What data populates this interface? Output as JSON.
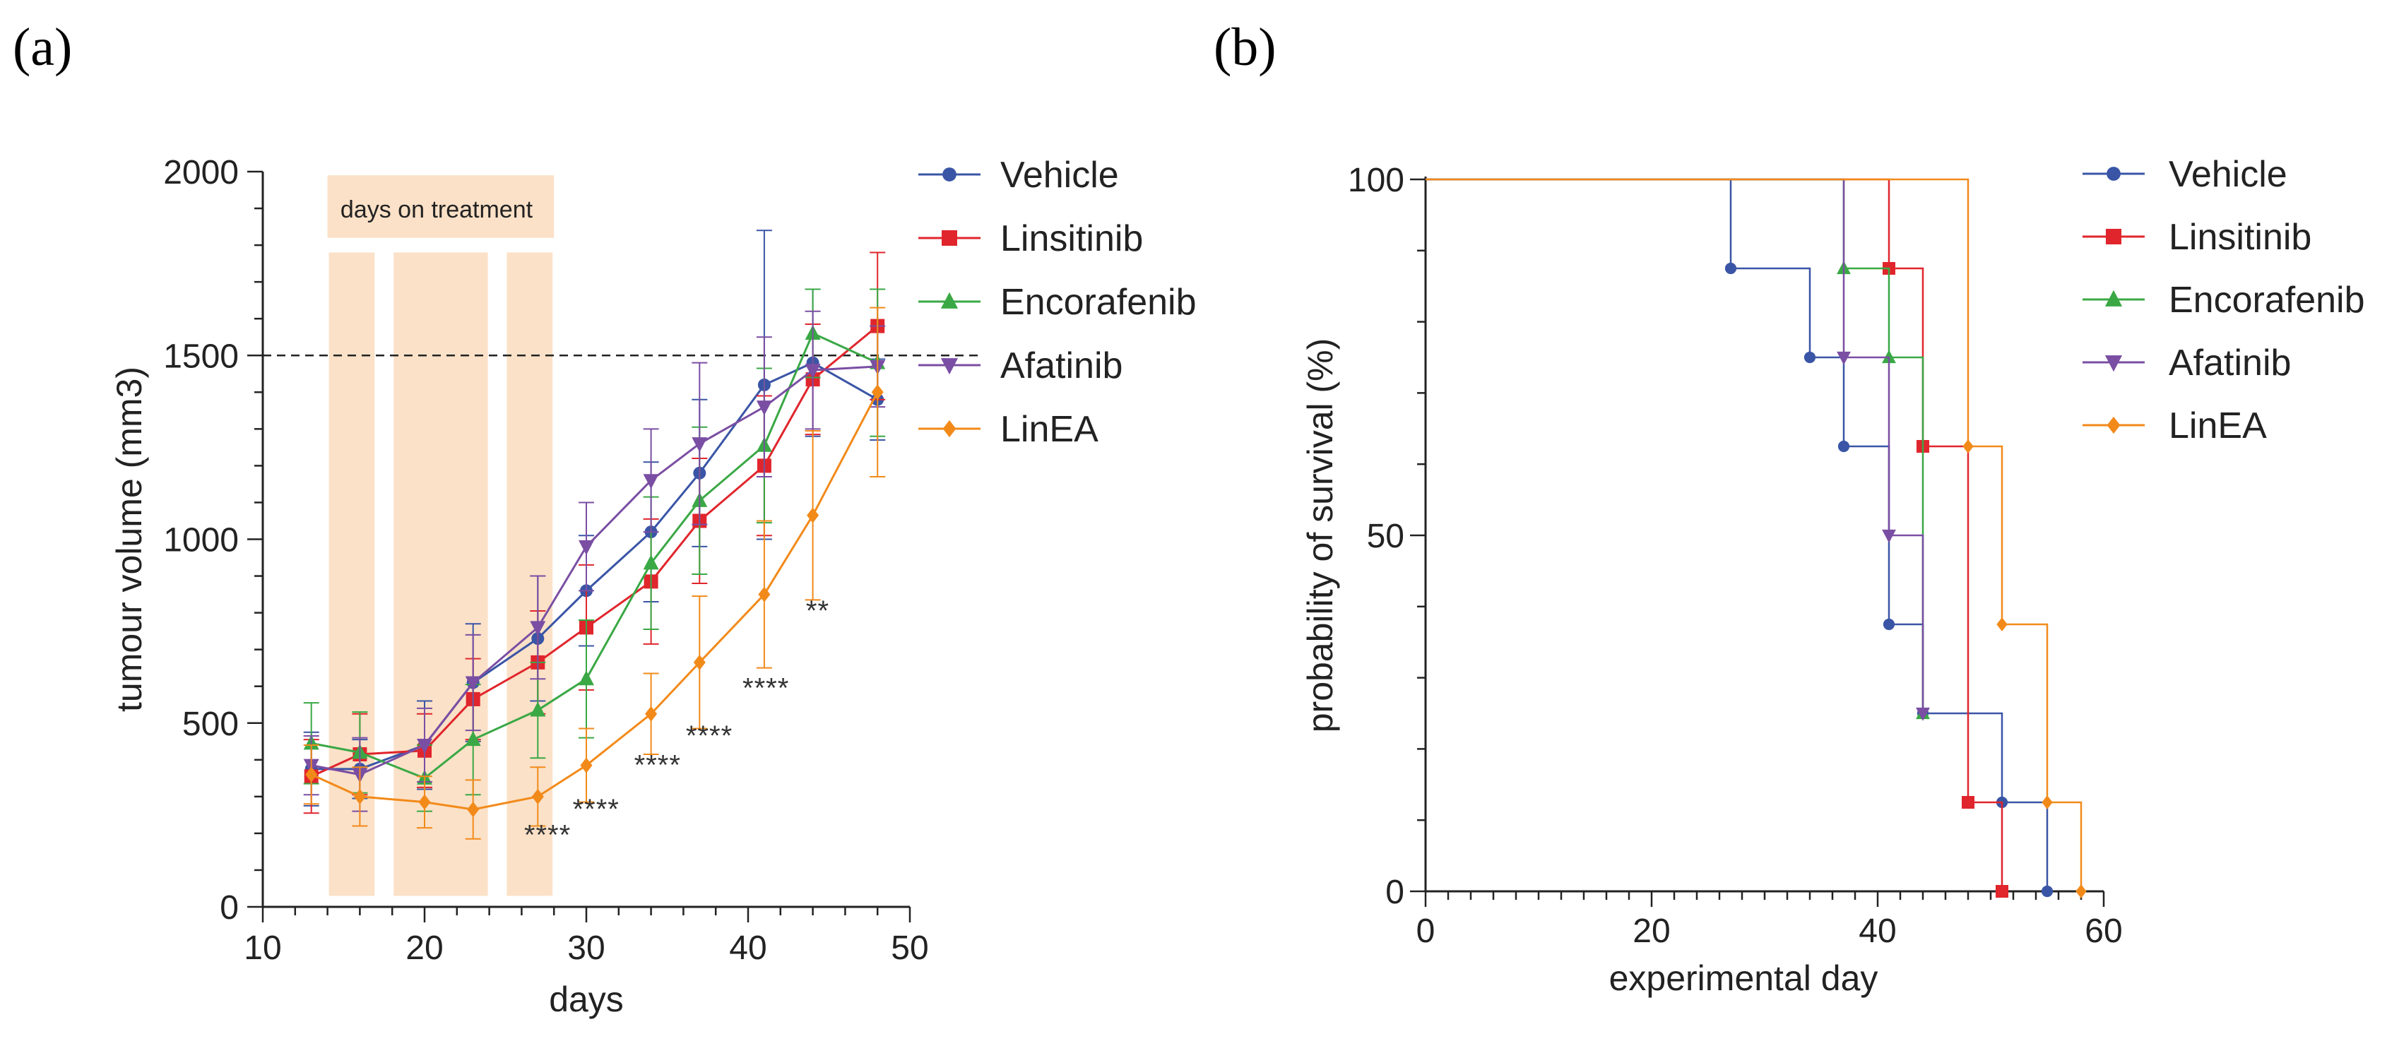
{
  "chart_data": [
    {
      "panel": "(a)",
      "type": "line",
      "xlabel": "days",
      "ylabel": "tumour volume (mm3)",
      "xlim": [
        10,
        50
      ],
      "ylim": [
        0,
        2000
      ],
      "xticks": [
        10,
        20,
        30,
        40,
        50
      ],
      "yticks": [
        0,
        500,
        1000,
        1500,
        2000
      ],
      "reference_line_y": 1500,
      "treatment_label": "days on treatment",
      "treatment_periods": [
        [
          14,
          17
        ],
        [
          18,
          24
        ],
        [
          25,
          28
        ]
      ],
      "legend_position": "right",
      "series": [
        {
          "name": "Vehicle",
          "color": "#3a55a6",
          "marker": "circle",
          "x": [
            13,
            16,
            20,
            23,
            27,
            30,
            34,
            37,
            41,
            44,
            48
          ],
          "y": [
            375,
            375,
            440,
            610,
            730,
            860,
            1020,
            1180,
            1420,
            1480,
            1380
          ],
          "err": [
            100,
            80,
            120,
            160,
            170,
            150,
            190,
            200,
            420,
            200,
            110
          ]
        },
        {
          "name": "Linsitinib",
          "color": "#e0252c",
          "marker": "square",
          "x": [
            13,
            16,
            20,
            23,
            27,
            30,
            34,
            37,
            41,
            44,
            48
          ],
          "y": [
            355,
            415,
            425,
            565,
            665,
            760,
            885,
            1050,
            1200,
            1435,
            1580
          ],
          "err": [
            100,
            110,
            100,
            110,
            140,
            170,
            170,
            170,
            190,
            150,
            200
          ]
        },
        {
          "name": "Encorafenib",
          "color": "#3aa845",
          "marker": "triangle-up",
          "x": [
            13,
            16,
            20,
            23,
            27,
            30,
            34,
            37,
            41,
            44,
            48
          ],
          "y": [
            445,
            420,
            350,
            455,
            535,
            620,
            935,
            1105,
            1255,
            1560,
            1480
          ],
          "err": [
            110,
            110,
            90,
            150,
            130,
            160,
            180,
            200,
            210,
            120,
            200
          ]
        },
        {
          "name": "Afatinib",
          "color": "#7a4ea3",
          "marker": "triangle-down",
          "x": [
            13,
            16,
            20,
            23,
            27,
            30,
            34,
            37,
            41,
            44,
            48
          ],
          "y": [
            385,
            360,
            440,
            610,
            760,
            980,
            1160,
            1260,
            1360,
            1460,
            1470
          ],
          "err": [
            80,
            100,
            100,
            130,
            140,
            120,
            140,
            220,
            190,
            160,
            110
          ]
        },
        {
          "name": "LinEA",
          "color": "#f28a1a",
          "marker": "diamond",
          "x": [
            13,
            16,
            20,
            23,
            27,
            30,
            34,
            37,
            41,
            44,
            48
          ],
          "y": [
            360,
            300,
            285,
            265,
            300,
            385,
            525,
            665,
            850,
            1065,
            1400
          ],
          "err": [
            80,
            80,
            70,
            80,
            80,
            100,
            110,
            180,
            200,
            230,
            230
          ]
        }
      ],
      "annotations": [
        {
          "text": "****",
          "x": 27.6,
          "y": 170
        },
        {
          "text": "****",
          "x": 30.6,
          "y": 240
        },
        {
          "text": "****",
          "x": 34.4,
          "y": 360
        },
        {
          "text": "****",
          "x": 37.6,
          "y": 440
        },
        {
          "text": "****",
          "x": 41.1,
          "y": 570
        },
        {
          "text": "**",
          "x": 44.3,
          "y": 780
        }
      ]
    },
    {
      "panel": "(b)",
      "type": "line",
      "subtype": "kaplan-meier",
      "xlabel": "experimental day",
      "ylabel": "probability of survival (%)",
      "xlim": [
        0,
        60
      ],
      "ylim": [
        0,
        100
      ],
      "xticks": [
        0,
        20,
        40,
        60
      ],
      "yticks": [
        0,
        50,
        100
      ],
      "legend_position": "right",
      "series": [
        {
          "name": "Vehicle",
          "color": "#3a55a6",
          "marker": "circle",
          "steps": [
            [
              0,
              100
            ],
            [
              27,
              87.5
            ],
            [
              34,
              75
            ],
            [
              37,
              62.5
            ],
            [
              41,
              37.5
            ],
            [
              44,
              25
            ],
            [
              51,
              12.5
            ],
            [
              55,
              0
            ]
          ]
        },
        {
          "name": "Linsitinib",
          "color": "#e0252c",
          "marker": "square",
          "steps": [
            [
              0,
              100
            ],
            [
              41,
              87.5
            ],
            [
              44,
              62.5
            ],
            [
              48,
              12.5
            ],
            [
              51,
              0
            ]
          ]
        },
        {
          "name": "Encorafenib",
          "color": "#3aa845",
          "marker": "triangle-up",
          "steps": [
            [
              0,
              100
            ],
            [
              37,
              87.5
            ],
            [
              41,
              75
            ],
            [
              44,
              25
            ]
          ]
        },
        {
          "name": "Afatinib",
          "color": "#7a4ea3",
          "marker": "triangle-down",
          "steps": [
            [
              0,
              100
            ],
            [
              37,
              75
            ],
            [
              41,
              50
            ],
            [
              44,
              25
            ]
          ]
        },
        {
          "name": "LinEA",
          "color": "#f28a1a",
          "marker": "diamond",
          "steps": [
            [
              0,
              100
            ],
            [
              48,
              62.5
            ],
            [
              51,
              37.5
            ],
            [
              55,
              12.5
            ],
            [
              58,
              0
            ]
          ]
        }
      ]
    }
  ]
}
